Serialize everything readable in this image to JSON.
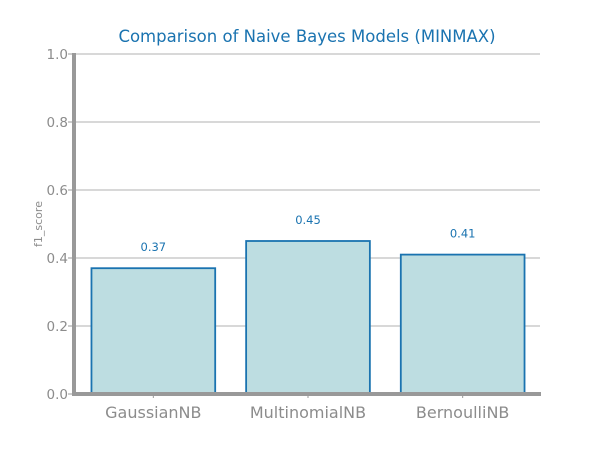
{
  "chart_data": {
    "type": "bar",
    "title": "Comparison of Naive Bayes Models (MINMAX)",
    "xlabel": "",
    "ylabel": "f1_score",
    "categories": [
      "GaussianNB",
      "MultinomialNB",
      "BernoulliNB"
    ],
    "values": [
      0.37,
      0.45,
      0.41
    ],
    "data_labels": [
      "0.37",
      "0.45",
      "0.41"
    ],
    "ylim": [
      0.0,
      1.0
    ],
    "yticks": [
      0.0,
      0.2,
      0.4,
      0.6,
      0.8,
      1.0
    ],
    "ytick_labels": [
      "0.0",
      "0.2",
      "0.4",
      "0.6",
      "0.8",
      "1.0"
    ],
    "grid": "horizontal",
    "colors": {
      "bar_fill": "#bddde1",
      "bar_edge": "#1a73b0",
      "title": "#1a73b0",
      "data_label": "#1a73b0",
      "axis": "#999999",
      "grid": "#cccccc",
      "tick_text": "#8c8c8c"
    }
  }
}
